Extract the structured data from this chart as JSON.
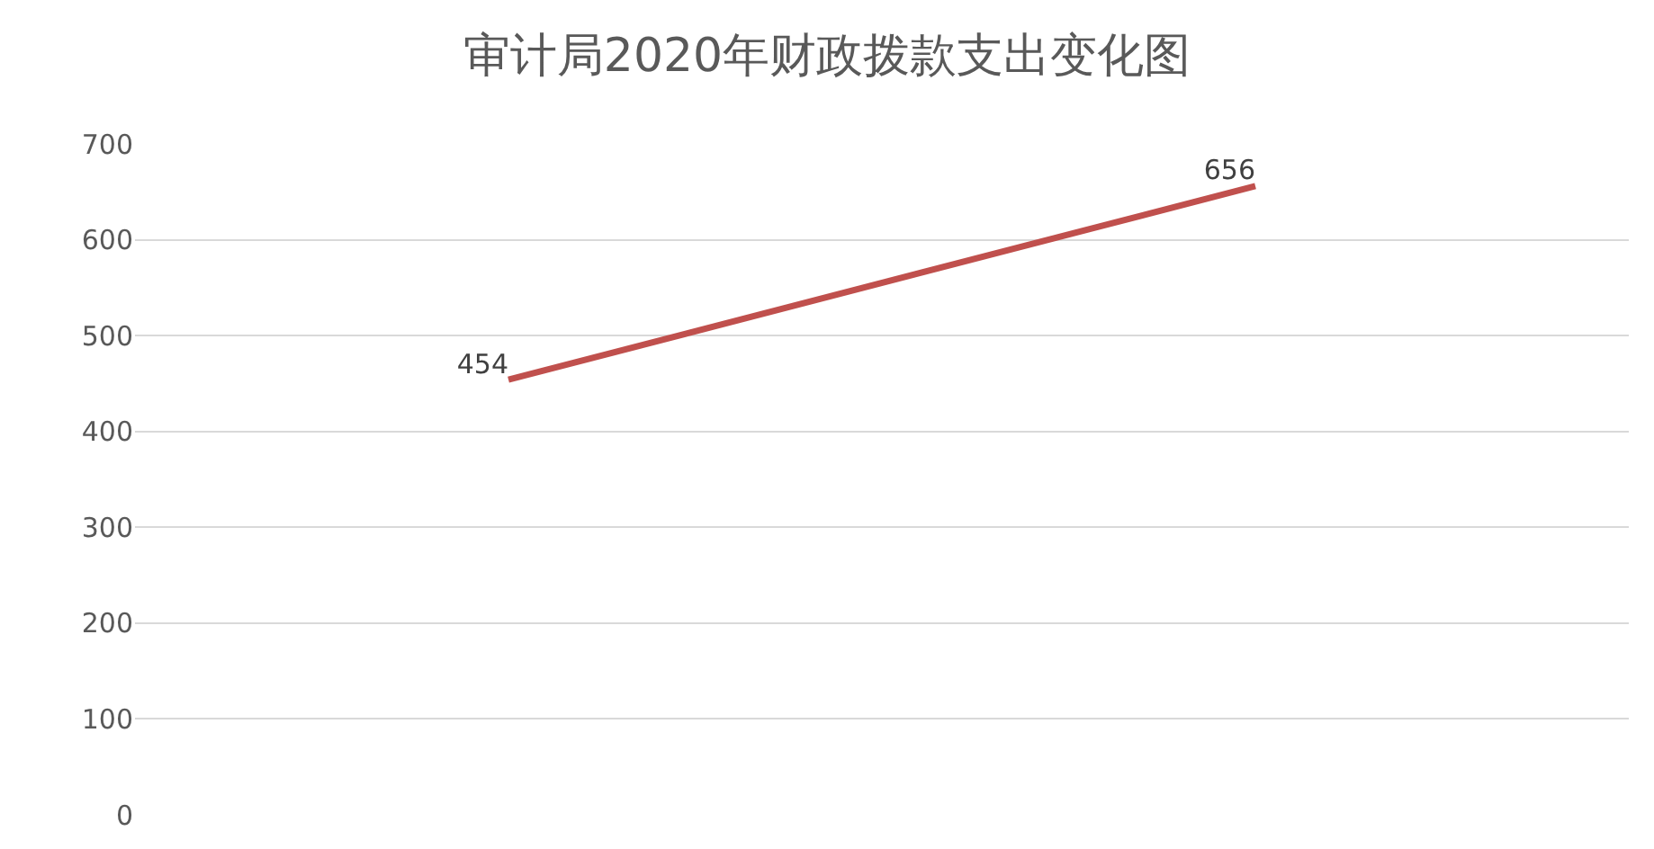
{
  "chart_data": {
    "type": "line",
    "title": "审计局2020年财政拨款支出变化图",
    "categories": [
      null,
      null
    ],
    "series": [
      {
        "color": "#c0504d",
        "values": [
          454,
          656
        ]
      }
    ],
    "ylim": [
      0,
      700
    ],
    "yticks": [
      0,
      100,
      200,
      300,
      400,
      500,
      600,
      700
    ],
    "grid": "y",
    "data_labels": true,
    "marker": "none",
    "line_style": "solid",
    "tick_labels": "y"
  }
}
